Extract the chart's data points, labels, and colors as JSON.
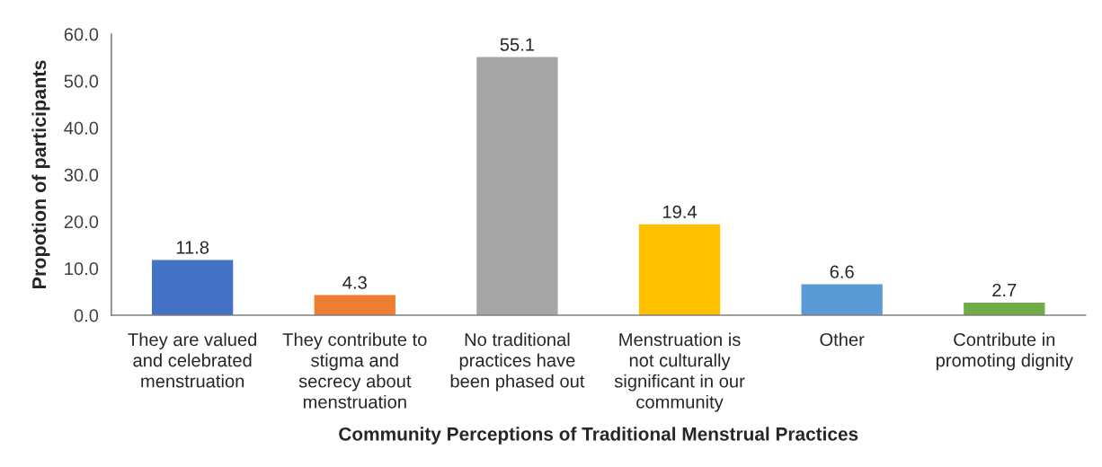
{
  "chart_data": {
    "type": "bar",
    "xlabel": "Community Perceptions of Traditional Menstrual Practices",
    "ylabel": "Propotion of participants",
    "categories": [
      "They are valued\nand celebrated\nmenstruation",
      "They contribute to\nstigma and\nsecrecy about\nmenstruation",
      "No traditional\npractices have\nbeen phased out",
      "Menstruation is\nnot culturally\nsignificant in our\ncommunity",
      "Other",
      "Contribute in\npromoting dignity"
    ],
    "values": [
      11.8,
      4.3,
      55.1,
      19.4,
      6.6,
      2.7
    ],
    "colors": [
      "#4472c4",
      "#ed7d31",
      "#a5a5a5",
      "#ffc000",
      "#5b9bd5",
      "#70ad47"
    ],
    "value_labels": [
      "11.8",
      "4.3",
      "55.1",
      "19.4",
      "6.6",
      "2.7"
    ],
    "ylim": [
      0,
      60
    ],
    "yticks": [
      {
        "value": 0,
        "label": "0.0"
      },
      {
        "value": 10,
        "label": "10.0"
      },
      {
        "value": 20,
        "label": "20.0"
      },
      {
        "value": 30,
        "label": "30.0"
      },
      {
        "value": 40,
        "label": "40.0"
      },
      {
        "value": 50,
        "label": "50.0"
      },
      {
        "value": 60,
        "label": "60.0"
      }
    ],
    "grid": false
  }
}
